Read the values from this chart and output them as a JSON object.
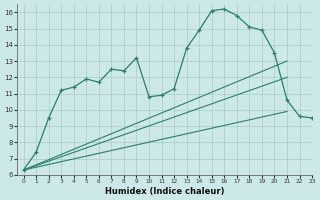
{
  "xlabel": "Humidex (Indice chaleur)",
  "background_color": "#cce8e8",
  "grid_color": "#aacccc",
  "line_color": "#2e7d6e",
  "xlim": [
    -0.5,
    23
  ],
  "ylim": [
    6,
    16.5
  ],
  "xticks": [
    0,
    1,
    2,
    3,
    4,
    5,
    6,
    7,
    8,
    9,
    10,
    11,
    12,
    13,
    14,
    15,
    16,
    17,
    18,
    19,
    20,
    21,
    22,
    23
  ],
  "yticks": [
    6,
    7,
    8,
    9,
    10,
    11,
    12,
    13,
    14,
    15,
    16
  ],
  "line1_x": [
    0,
    1,
    2,
    3,
    4,
    5,
    6,
    7,
    8,
    9,
    10,
    11,
    12,
    13,
    14,
    15,
    16,
    17,
    18,
    19,
    20,
    21,
    22,
    23
  ],
  "line1_y": [
    6.3,
    7.4,
    9.5,
    11.2,
    11.4,
    11.9,
    11.7,
    12.5,
    12.4,
    13.2,
    10.8,
    10.9,
    11.3,
    13.8,
    14.9,
    16.1,
    16.2,
    15.8,
    15.1,
    14.9,
    13.5,
    10.6,
    9.6,
    9.5
  ],
  "trend1_x": [
    0,
    21
  ],
  "trend1_y": [
    6.3,
    13.0
  ],
  "trend2_x": [
    0,
    21
  ],
  "trend2_y": [
    6.3,
    12.0
  ],
  "trend3_x": [
    0,
    21
  ],
  "trend3_y": [
    6.3,
    9.9
  ]
}
